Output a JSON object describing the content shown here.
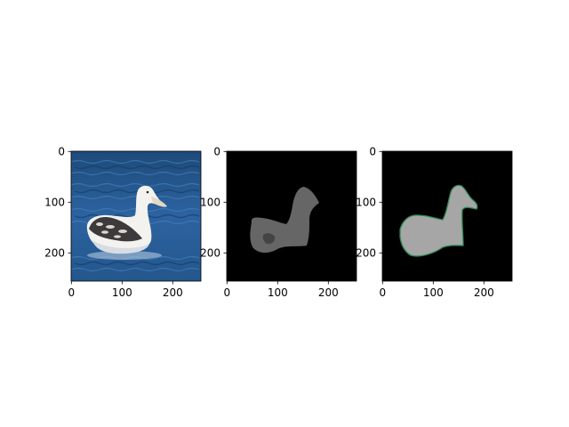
{
  "figure": {
    "background": "#ffffff",
    "panels": [
      {
        "id": "photo",
        "description": "photograph of a white albatross sitting on blue water",
        "x_ticks": [
          "0",
          "100",
          "200"
        ],
        "y_ticks": [
          "0",
          "100",
          "200"
        ],
        "x_range": [
          0,
          255
        ],
        "y_range": [
          255,
          0
        ]
      },
      {
        "id": "gray-mask",
        "x_ticks": [
          "0",
          "100",
          "200"
        ],
        "y_ticks": [
          "0",
          "100",
          "200"
        ],
        "x_range": [
          0,
          255
        ],
        "y_range": [
          255,
          0
        ]
      },
      {
        "id": "contour-mask",
        "x_ticks": [
          "0",
          "100",
          "200"
        ],
        "y_ticks": [
          "0",
          "100",
          "200"
        ],
        "x_range": [
          0,
          255
        ],
        "y_range": [
          255,
          0
        ]
      }
    ]
  },
  "colors": {
    "water_dark": "#1b4470",
    "water_mid": "#2a5f97",
    "water_light": "#3f78b3",
    "bird_white": "#f2f2f0",
    "mask_black": "#000000",
    "mask_gray": "#666666",
    "mask_dark_gray": "#444444",
    "mask_light_gray": "#a6a6a6",
    "contour_green": "#2e8b57"
  }
}
